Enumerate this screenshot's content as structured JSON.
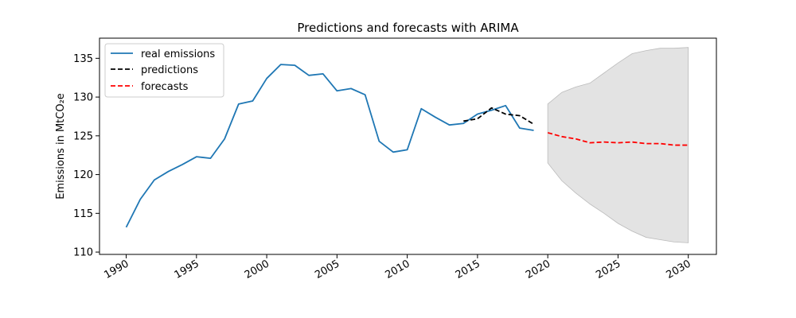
{
  "chart_data": {
    "type": "line",
    "title": "Predictions and forecasts with ARIMA",
    "ylabel": "Emissions in MtCO₂e",
    "xlim": [
      1988.1,
      2032
    ],
    "ylim": [
      109.7,
      137.6
    ],
    "x_ticks": [
      1990,
      1995,
      2000,
      2005,
      2010,
      2015,
      2020,
      2025,
      2030
    ],
    "y_ticks": [
      110,
      115,
      120,
      125,
      130,
      135
    ],
    "legend_position": "top-left",
    "colors": {
      "real": "#1f77b4",
      "predictions": "#000000",
      "forecasts": "#ff0000",
      "band": "#d9d9d9"
    },
    "series": [
      {
        "name": "real emissions",
        "style": "solid",
        "x": [
          1990,
          1991,
          1992,
          1993,
          1994,
          1995,
          1996,
          1997,
          1998,
          1999,
          2000,
          2001,
          2002,
          2003,
          2004,
          2005,
          2006,
          2007,
          2008,
          2009,
          2010,
          2011,
          2012,
          2013,
          2014,
          2015,
          2016,
          2017,
          2018,
          2019
        ],
        "values": [
          113.2,
          116.8,
          119.3,
          120.4,
          121.3,
          122.3,
          122.1,
          124.6,
          129.1,
          129.5,
          132.4,
          134.2,
          134.1,
          132.8,
          133.0,
          130.8,
          131.1,
          130.3,
          124.3,
          122.9,
          123.2,
          128.5,
          127.4,
          126.4,
          126.6,
          127.8,
          128.3,
          128.9,
          126.0,
          125.7
        ]
      },
      {
        "name": "predictions",
        "style": "dashed",
        "x": [
          2014,
          2015,
          2016,
          2017,
          2018,
          2019
        ],
        "values": [
          126.9,
          127.2,
          128.6,
          127.8,
          127.6,
          126.5
        ]
      },
      {
        "name": "forecasts",
        "style": "dashed",
        "x": [
          2020,
          2021,
          2022,
          2023,
          2024,
          2025,
          2026,
          2027,
          2028,
          2029,
          2030
        ],
        "values": [
          125.4,
          124.9,
          124.6,
          124.1,
          124.2,
          124.1,
          124.2,
          124.0,
          124.0,
          123.8,
          123.8
        ]
      }
    ],
    "confidence_band": {
      "x": [
        2020,
        2021,
        2022,
        2023,
        2024,
        2025,
        2026,
        2027,
        2028,
        2029,
        2030
      ],
      "lower": [
        121.5,
        119.2,
        117.6,
        116.2,
        115.0,
        113.7,
        112.7,
        111.9,
        111.6,
        111.3,
        111.2
      ],
      "upper": [
        129.1,
        130.6,
        131.3,
        131.8,
        133.1,
        134.4,
        135.6,
        136.0,
        136.3,
        136.3,
        136.4
      ]
    }
  }
}
